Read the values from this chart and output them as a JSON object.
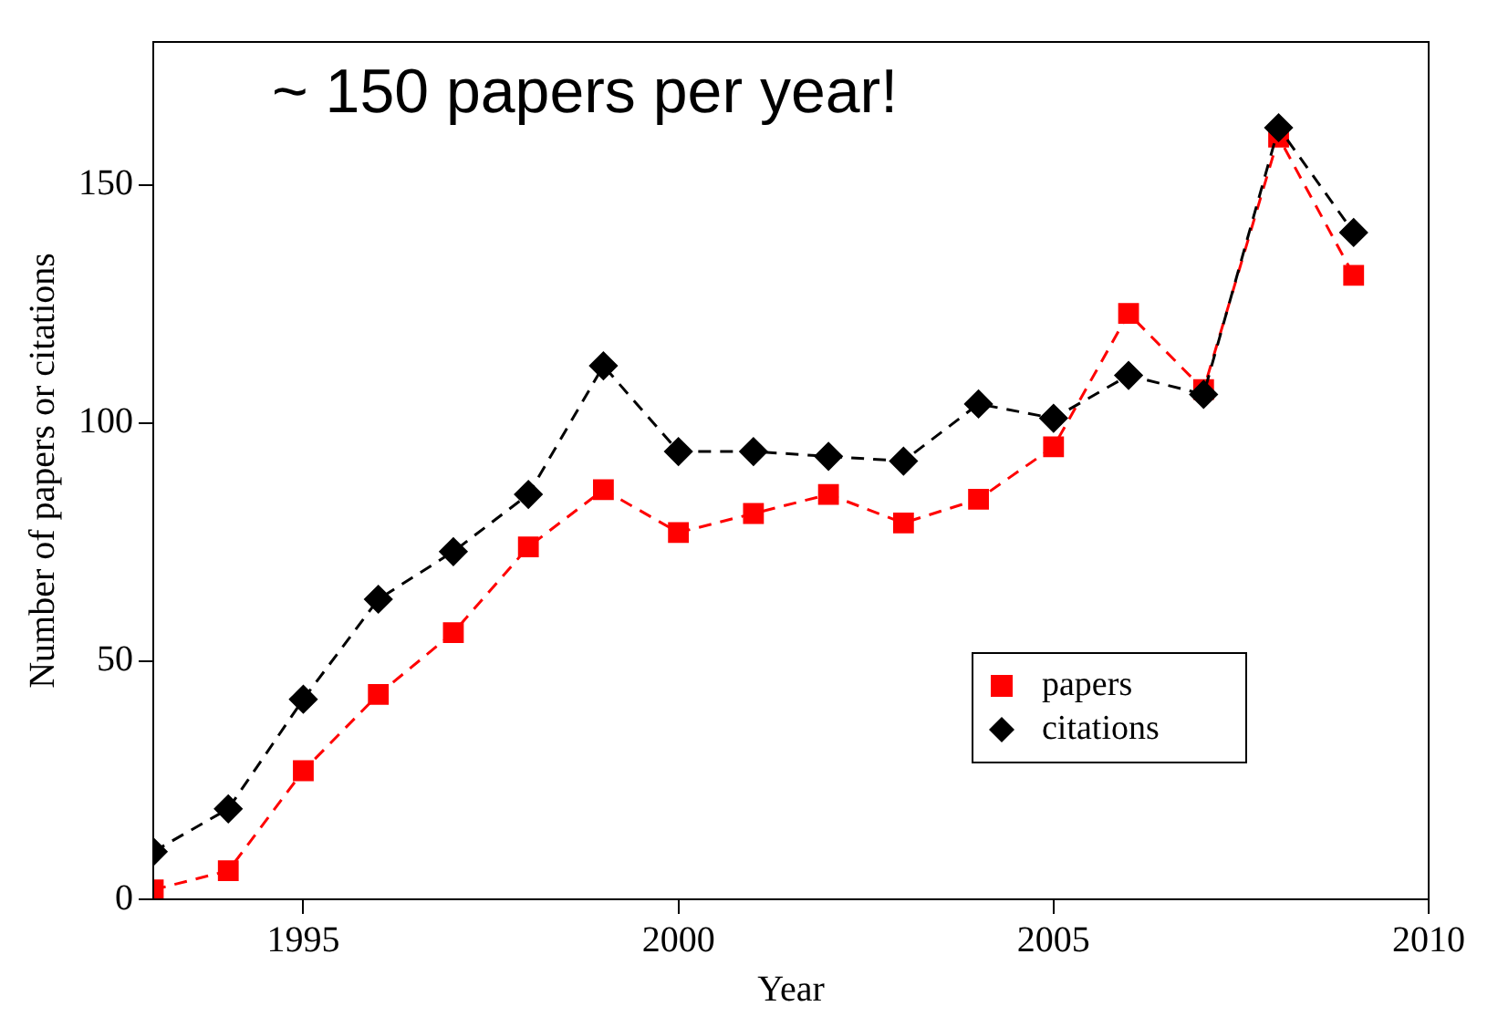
{
  "chart_data": {
    "type": "line",
    "xlabel": "Year",
    "ylabel": "Number of papers or citations",
    "annotations": [
      "~ 150 papers per year!"
    ],
    "x": [
      1993,
      1994,
      1995,
      1996,
      1997,
      1998,
      1999,
      2000,
      2001,
      2002,
      2003,
      2004,
      2005,
      2006,
      2007,
      2008,
      2009
    ],
    "series": [
      {
        "name": "papers",
        "color": "#ff0000",
        "marker": "square",
        "values": [
          2,
          6,
          27,
          43,
          56,
          74,
          86,
          77,
          81,
          85,
          79,
          84,
          95,
          123,
          107,
          160,
          131
        ]
      },
      {
        "name": "citations",
        "color": "#000000",
        "marker": "diamond",
        "values": [
          10,
          19,
          42,
          63,
          73,
          85,
          112,
          94,
          94,
          93,
          92,
          104,
          101,
          110,
          106,
          162,
          140
        ]
      }
    ],
    "line_style": "dashed",
    "xlim": [
      1993,
      2010
    ],
    "xticks": [
      1995,
      2000,
      2005,
      2010
    ],
    "ylim": [
      0,
      180
    ],
    "yticks": [
      0,
      50,
      100,
      150
    ],
    "grid": false,
    "legend": "bottom right"
  }
}
